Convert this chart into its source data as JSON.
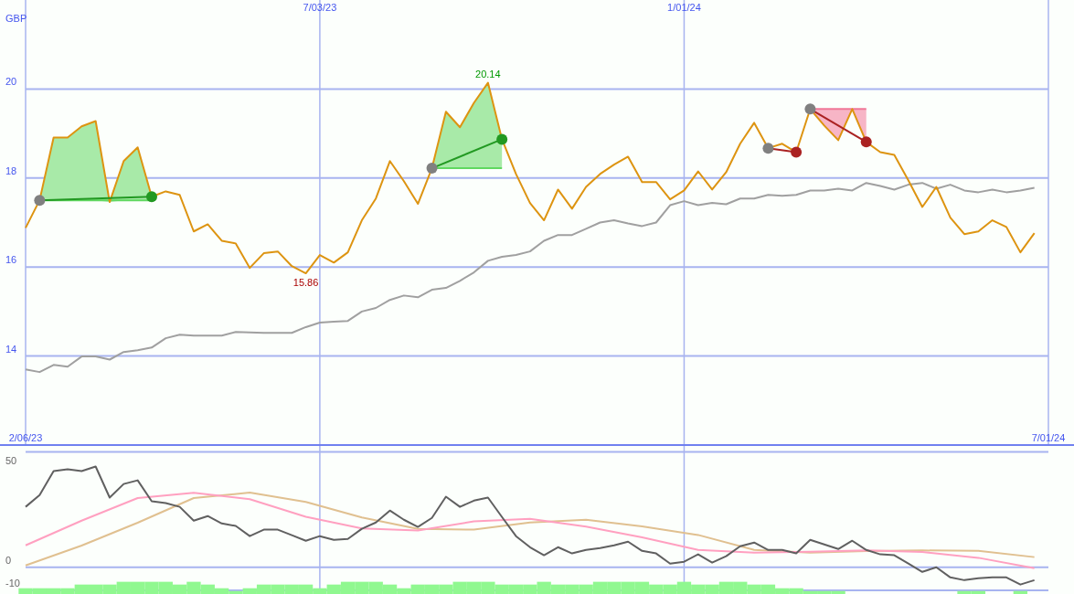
{
  "chart_data": [
    {
      "type": "line",
      "ylabel": "GBP",
      "xlim": [
        "2023-02-06",
        "2024-07-01"
      ],
      "xticks": [
        {
          "value": "2023-02-06",
          "label": "2/06/23"
        },
        {
          "value": "2024-07-01",
          "label": "7/01/24"
        }
      ],
      "x2lim": [
        "2023-02-06",
        "2024-07-01"
      ],
      "x2ticks": [
        {
          "value": "2023-07-03",
          "label": "7/03/23"
        },
        {
          "value": "2024-01-01",
          "label": "1/01/24"
        }
      ],
      "ylim": [
        12,
        22
      ],
      "yticks": [
        14,
        16,
        18,
        20
      ],
      "grid": true,
      "annotations": [
        {
          "text": "20.14",
          "x": "2023-09-25",
          "y": 20.14
        },
        {
          "text": "15.86",
          "x": "2023-06-26",
          "y": 15.86
        }
      ],
      "x": [
        "2023-02-06",
        "2023-02-13",
        "2023-02-20",
        "2023-02-27",
        "2023-03-06",
        "2023-03-13",
        "2023-03-20",
        "2023-03-27",
        "2023-04-03",
        "2023-04-10",
        "2023-04-17",
        "2023-04-24",
        "2023-05-01",
        "2023-05-08",
        "2023-05-15",
        "2023-05-22",
        "2023-05-29",
        "2023-06-05",
        "2023-06-12",
        "2023-06-19",
        "2023-06-26",
        "2023-07-03",
        "2023-07-10",
        "2023-07-17",
        "2023-07-24",
        "2023-07-31",
        "2023-08-07",
        "2023-08-14",
        "2023-08-21",
        "2023-08-28",
        "2023-09-04",
        "2023-09-11",
        "2023-09-18",
        "2023-09-25",
        "2023-10-02",
        "2023-10-09",
        "2023-10-16",
        "2023-10-23",
        "2023-10-30",
        "2023-11-06",
        "2023-11-13",
        "2023-11-20",
        "2023-11-27",
        "2023-12-04",
        "2023-12-11",
        "2023-12-18",
        "2023-12-25",
        "2024-01-01",
        "2024-01-08",
        "2024-01-15",
        "2024-01-22",
        "2024-01-29",
        "2024-02-05",
        "2024-02-12",
        "2024-02-19",
        "2024-02-26",
        "2024-03-04",
        "2024-03-11",
        "2024-03-18",
        "2024-03-25",
        "2024-04-01",
        "2024-04-08",
        "2024-04-15",
        "2024-04-22",
        "2024-04-29",
        "2024-05-06",
        "2024-05-13",
        "2024-05-20",
        "2024-05-27",
        "2024-06-03",
        "2024-06-10",
        "2024-06-17",
        "2024-06-24"
      ],
      "series": [
        {
          "color": "#60d860",
          "x": [
            "2023-02-13",
            "2023-02-20",
            "2023-02-27",
            "2023-03-06",
            "2023-03-13",
            "2023-03-20",
            "2023-03-27",
            "2023-04-03",
            "2023-04-10"
          ],
          "values": [
            17.5,
            17.5,
            17.5,
            17.5,
            17.5,
            17.5,
            17.5,
            17.5,
            17.5
          ],
          "lower": [
            17.5,
            17.5,
            17.5,
            17.5,
            17.5,
            17.46,
            17.5,
            17.5,
            17.5
          ],
          "upper": [
            17.5,
            18.91,
            18.91,
            19.16,
            19.28,
            17.5,
            18.38,
            18.69,
            17.58
          ]
        },
        {
          "color": "#60d860",
          "x": [
            "2023-08-28",
            "2023-09-04",
            "2023-09-11",
            "2023-09-18",
            "2023-09-25",
            "2023-10-02"
          ],
          "values": [
            18.22,
            18.22,
            18.22,
            18.22,
            18.22,
            18.22
          ],
          "lower": [
            18.22,
            18.22,
            18.22,
            18.22,
            18.22,
            18.22
          ],
          "upper": [
            18.22,
            19.49,
            19.14,
            19.69,
            20.14,
            18.87
          ]
        },
        {
          "color": "#f07898",
          "x": [
            "2024-03-04",
            "2024-03-11",
            "2024-03-18",
            "2024-03-25",
            "2024-04-01"
          ],
          "values": [
            19.55,
            19.55,
            19.55,
            19.55,
            19.55
          ],
          "lower": [
            19.55,
            19.18,
            18.85,
            19.55,
            18.81
          ],
          "upper": [
            19.55,
            19.55,
            19.55,
            19.55,
            19.55
          ]
        },
        {
          "color": "#a0a0a0",
          "values": [
            13.7,
            13.64,
            13.8,
            13.76,
            13.99,
            13.99,
            13.92,
            14.09,
            14.13,
            14.19,
            14.4,
            14.48,
            14.46,
            14.46,
            14.46,
            14.54,
            14.53,
            14.52,
            14.52,
            14.52,
            14.65,
            14.75,
            14.77,
            14.79,
            15.0,
            15.08,
            15.26,
            15.36,
            15.32,
            15.49,
            15.53,
            15.69,
            15.88,
            16.14,
            16.23,
            16.27,
            16.35,
            16.59,
            16.72,
            16.72,
            16.86,
            17.0,
            17.05,
            16.98,
            16.92,
            17.0,
            17.39,
            17.48,
            17.39,
            17.44,
            17.41,
            17.54,
            17.54,
            17.62,
            17.6,
            17.62,
            17.72,
            17.72,
            17.76,
            17.72,
            17.89,
            17.82,
            17.74,
            17.85,
            17.89,
            17.76,
            17.85,
            17.72,
            17.68,
            17.74,
            17.68,
            17.72,
            17.78
          ]
        },
        {
          "color": "#dd9411",
          "values": [
            16.88,
            17.5,
            18.91,
            18.91,
            19.16,
            19.28,
            17.46,
            18.38,
            18.69,
            17.58,
            17.7,
            17.62,
            16.8,
            16.96,
            16.59,
            16.53,
            15.98,
            16.31,
            16.35,
            16.02,
            15.86,
            16.27,
            16.1,
            16.33,
            17.05,
            17.54,
            18.38,
            17.93,
            17.42,
            18.22,
            19.49,
            19.14,
            19.69,
            20.14,
            18.87,
            18.09,
            17.44,
            17.05,
            17.74,
            17.31,
            17.8,
            18.09,
            18.3,
            18.48,
            17.91,
            17.91,
            17.52,
            17.72,
            18.15,
            17.74,
            18.13,
            18.77,
            19.24,
            18.67,
            18.77,
            18.58,
            19.55,
            19.18,
            18.85,
            19.55,
            18.81,
            18.58,
            18.52,
            17.95,
            17.35,
            17.8,
            17.11,
            16.74,
            16.8,
            17.05,
            16.9,
            16.33,
            16.76
          ]
        },
        {
          "color": "#229922",
          "marker": "circle",
          "colors": [
            "#808080",
            "#229922"
          ],
          "x": [
            "2023-02-13",
            "2023-04-10"
          ],
          "values": [
            17.5,
            17.58
          ]
        },
        {
          "color": "#229922",
          "marker": "circle",
          "colors": [
            "#808080",
            "#229922"
          ],
          "x": [
            "2023-08-28",
            "2023-10-02"
          ],
          "values": [
            18.22,
            18.87
          ]
        },
        {
          "color": "#aa2222",
          "marker": "circle",
          "colors": [
            "#808080",
            "#aa2222"
          ],
          "x": [
            "2024-02-12",
            "2024-02-26"
          ],
          "values": [
            18.67,
            18.58
          ]
        },
        {
          "color": "#aa2222",
          "marker": "circle",
          "colors": [
            "#808080",
            "#aa2222"
          ],
          "x": [
            "2024-03-04",
            "2024-04-01"
          ],
          "values": [
            19.55,
            18.81
          ]
        }
      ]
    },
    {
      "type": "line",
      "tick_labels": "y",
      "xlim": [
        "2023-02-06",
        "2024-07-01"
      ],
      "ref_lines": [
        {
          "axis": "x",
          "value": "2023-07-03"
        },
        {
          "axis": "x",
          "value": "2024-01-01"
        }
      ],
      "ylim": [
        -11.6,
        53
      ],
      "yticks": [
        -10,
        0,
        50
      ],
      "grid": true,
      "x": [
        "2023-02-06",
        "2023-02-13",
        "2023-02-20",
        "2023-02-27",
        "2023-03-06",
        "2023-03-13",
        "2023-03-20",
        "2023-03-27",
        "2023-04-03",
        "2023-04-10",
        "2023-04-17",
        "2023-04-24",
        "2023-05-01",
        "2023-05-08",
        "2023-05-15",
        "2023-05-22",
        "2023-05-29",
        "2023-06-05",
        "2023-06-12",
        "2023-06-19",
        "2023-06-26",
        "2023-07-03",
        "2023-07-10",
        "2023-07-17",
        "2023-07-24",
        "2023-07-31",
        "2023-08-07",
        "2023-08-14",
        "2023-08-21",
        "2023-08-28",
        "2023-09-04",
        "2023-09-11",
        "2023-09-18",
        "2023-09-25",
        "2023-10-02",
        "2023-10-09",
        "2023-10-16",
        "2023-10-23",
        "2023-10-30",
        "2023-11-06",
        "2023-11-13",
        "2023-11-20",
        "2023-11-27",
        "2023-12-04",
        "2023-12-11",
        "2023-12-18",
        "2023-12-25",
        "2024-01-01",
        "2024-01-08",
        "2024-01-15",
        "2024-01-22",
        "2024-01-29",
        "2024-02-05",
        "2024-02-12",
        "2024-02-19",
        "2024-02-26",
        "2024-03-04",
        "2024-03-11",
        "2024-03-18",
        "2024-03-25",
        "2024-04-01",
        "2024-04-08",
        "2024-04-15",
        "2024-04-22",
        "2024-04-29",
        "2024-05-06",
        "2024-05-13",
        "2024-05-20",
        "2024-05-27",
        "2024-06-03",
        "2024-06-10",
        "2024-06-17",
        "2024-06-24"
      ],
      "series": [
        {
          "type": "bar",
          "color": "#90f890",
          "base": [
            -11.6,
            -11.6,
            -11.6,
            -11.6,
            -11.6,
            -11.6,
            -11.6,
            -11.6,
            -11.6,
            -11.6,
            -11.6,
            -11.6,
            -11.6,
            -11.6,
            -11.6,
            -11.6,
            -11.6,
            -11.6,
            -11.6,
            -11.6,
            -11.6,
            -11.6,
            -11.6,
            -11.6,
            -11.6,
            -11.6,
            -11.6,
            -11.6,
            -11.6,
            -11.6,
            -11.6,
            -11.6,
            -11.6,
            -11.6,
            -11.6,
            -11.6,
            -11.6,
            -11.6,
            -11.6,
            -11.6,
            -11.6,
            -11.6,
            -11.6,
            -11.6,
            -11.6,
            -11.6,
            -11.6,
            -11.6,
            -11.6,
            -11.6,
            -11.6,
            -11.6,
            -11.6,
            -11.6,
            -11.6,
            -11.6,
            -11.6,
            -11.6,
            -11.6,
            null,
            null,
            null,
            null,
            null,
            null,
            null,
            null,
            -11.6,
            -11.6,
            null,
            null,
            -11.6,
            null
          ],
          "values": [
            2.5,
            2.5,
            2.5,
            2.5,
            4.1,
            4.1,
            4.1,
            5.3,
            5.3,
            5.3,
            5.3,
            4.1,
            5.3,
            4.1,
            2.5,
            1.3,
            2.5,
            4.1,
            4.1,
            4.1,
            4.1,
            2.5,
            4.1,
            5.3,
            5.3,
            5.3,
            4.1,
            2.5,
            4.1,
            4.1,
            4.1,
            5.3,
            5.3,
            5.3,
            4.1,
            4.1,
            4.1,
            5.3,
            4.1,
            4.1,
            4.1,
            5.3,
            5.3,
            5.3,
            5.3,
            4.1,
            4.1,
            5.3,
            4.1,
            4.1,
            5.3,
            5.3,
            4.1,
            4.1,
            2.5,
            2.5,
            1.3,
            1.3,
            1.3,
            null,
            null,
            null,
            null,
            null,
            null,
            null,
            null,
            1.3,
            1.3,
            null,
            null,
            1.3,
            null
          ]
        },
        {
          "color": "#e0c090",
          "x": [
            "2023-02-06",
            "2023-03-06",
            "2023-04-03",
            "2023-05-01",
            "2023-05-29",
            "2023-06-26",
            "2023-07-24",
            "2023-08-21",
            "2023-09-18",
            "2023-10-16",
            "2023-11-13",
            "2023-12-11",
            "2024-01-08",
            "2024-02-05",
            "2024-03-04",
            "2024-04-01",
            "2024-04-29",
            "2024-05-27",
            "2024-06-24"
          ],
          "values": [
            0.8,
            9.4,
            19.3,
            30.0,
            32.4,
            28.3,
            21.6,
            16.6,
            16.3,
            19.4,
            20.6,
            17.7,
            14.0,
            7.5,
            6.3,
            7.0,
            7.3,
            7.1,
            4.4
          ]
        },
        {
          "color": "#ffa0c0",
          "x": [
            "2023-02-06",
            "2023-03-06",
            "2023-04-03",
            "2023-05-01",
            "2023-05-29",
            "2023-06-26",
            "2023-07-24",
            "2023-08-21",
            "2023-09-18",
            "2023-10-16",
            "2023-11-13",
            "2023-12-11",
            "2024-01-08",
            "2024-02-05",
            "2024-03-04",
            "2024-04-01",
            "2024-04-29",
            "2024-05-27",
            "2024-06-24"
          ],
          "values": [
            9.5,
            20.2,
            30.0,
            32.3,
            29.5,
            21.9,
            16.8,
            15.9,
            19.9,
            21.0,
            17.6,
            13.0,
            7.5,
            6.3,
            6.7,
            7.3,
            6.6,
            4.1,
            -0.4
          ]
        },
        {
          "color": "#606060",
          "values": [
            26.2,
            31.3,
            41.7,
            42.5,
            41.7,
            43.7,
            30.2,
            36.1,
            37.7,
            28.6,
            27.8,
            26.2,
            20.2,
            22.2,
            19.0,
            17.9,
            13.5,
            16.3,
            16.3,
            13.9,
            11.5,
            13.5,
            11.9,
            12.3,
            16.7,
            19.4,
            24.6,
            20.6,
            17.5,
            21.4,
            30.6,
            26.2,
            28.9,
            30.2,
            21.8,
            13.5,
            8.7,
            5.2,
            8.7,
            6.0,
            7.5,
            8.3,
            9.5,
            11.1,
            7.1,
            6.0,
            1.6,
            2.4,
            5.6,
            2.0,
            4.8,
            9.1,
            10.7,
            7.5,
            7.5,
            6.0,
            11.9,
            9.9,
            7.9,
            11.5,
            7.5,
            5.6,
            5.2,
            1.6,
            -2.0,
            0,
            -4.4,
            -5.6,
            -4.8,
            -4.4,
            -4.4,
            -7.5,
            -5.6
          ]
        }
      ]
    }
  ]
}
